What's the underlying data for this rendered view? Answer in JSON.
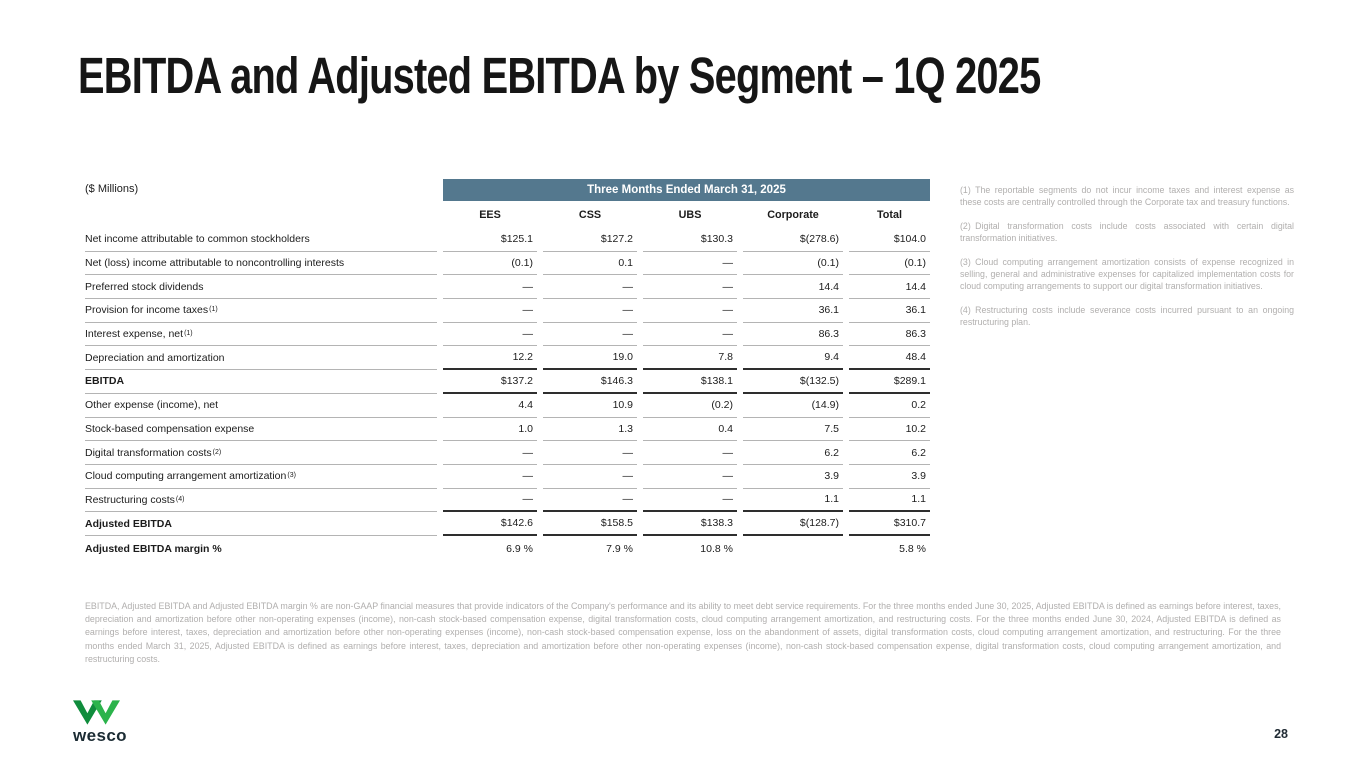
{
  "slide": {
    "title": "EBITDA and Adjusted EBITDA by Segment – 1Q 2025",
    "page_number": "28"
  },
  "table": {
    "units_label": "($ Millions)",
    "period_header": "Three Months Ended March 31, 2025",
    "columns": [
      "EES",
      "CSS",
      "UBS",
      "Corporate",
      "Total"
    ],
    "rows": [
      {
        "label": "Net income attributable to common stockholders",
        "sup": "",
        "values": [
          "$125.1",
          "$127.2",
          "$130.3",
          "$(278.6)",
          "$104.0"
        ],
        "bold": false,
        "border": "light"
      },
      {
        "label": "Net (loss) income attributable to noncontrolling interests",
        "sup": "",
        "values": [
          "(0.1)",
          "0.1",
          "—",
          "(0.1)",
          "(0.1)"
        ],
        "bold": false,
        "border": "light"
      },
      {
        "label": "Preferred stock dividends",
        "sup": "",
        "values": [
          "—",
          "—",
          "—",
          "14.4",
          "14.4"
        ],
        "bold": false,
        "border": "light"
      },
      {
        "label": "Provision for income taxes",
        "sup": "(1)",
        "values": [
          "—",
          "—",
          "—",
          "36.1",
          "36.1"
        ],
        "bold": false,
        "border": "light"
      },
      {
        "label": "Interest expense, net",
        "sup": "(1)",
        "values": [
          "—",
          "—",
          "—",
          "86.3",
          "86.3"
        ],
        "bold": false,
        "border": "light"
      },
      {
        "label": "Depreciation and amortization",
        "sup": "",
        "values": [
          "12.2",
          "19.0",
          "7.8",
          "9.4",
          "48.4"
        ],
        "bold": false,
        "border": "dark"
      },
      {
        "label": "EBITDA",
        "sup": "",
        "values": [
          "$137.2",
          "$146.3",
          "$138.1",
          "$(132.5)",
          "$289.1"
        ],
        "bold": true,
        "border": "dark"
      },
      {
        "label": "Other expense (income), net",
        "sup": "",
        "values": [
          "4.4",
          "10.9",
          "(0.2)",
          "(14.9)",
          "0.2"
        ],
        "bold": false,
        "border": "light"
      },
      {
        "label": "Stock-based compensation expense",
        "sup": "",
        "values": [
          "1.0",
          "1.3",
          "0.4",
          "7.5",
          "10.2"
        ],
        "bold": false,
        "border": "light"
      },
      {
        "label": "Digital transformation costs",
        "sup": "(2)",
        "values": [
          "—",
          "—",
          "—",
          "6.2",
          "6.2"
        ],
        "bold": false,
        "border": "light"
      },
      {
        "label": "Cloud computing arrangement amortization",
        "sup": "(3)",
        "values": [
          "—",
          "—",
          "—",
          "3.9",
          "3.9"
        ],
        "bold": false,
        "border": "light"
      },
      {
        "label": "Restructuring costs",
        "sup": "(4)",
        "values": [
          "—",
          "—",
          "—",
          "1.1",
          "1.1"
        ],
        "bold": false,
        "border": "dark"
      },
      {
        "label": "Adjusted EBITDA",
        "sup": "",
        "values": [
          "$142.6",
          "$158.5",
          "$138.3",
          "$(128.7)",
          "$310.7"
        ],
        "bold": true,
        "border": "dark"
      },
      {
        "label": "Adjusted EBITDA margin %",
        "sup": "",
        "values": [
          "6.9 %",
          "7.9 %",
          "10.8 %",
          "",
          "5.8 %"
        ],
        "bold": true,
        "border": "none"
      }
    ]
  },
  "footnotes": {
    "items": [
      {
        "marker": "(1)",
        "text": "The reportable segments do not incur income taxes and interest expense as these costs are centrally controlled through the Corporate tax and treasury functions."
      },
      {
        "marker": "(2)",
        "text": "Digital transformation costs include costs associated with certain digital transformation initiatives."
      },
      {
        "marker": "(3)",
        "text": "Cloud computing arrangement amortization consists of expense recognized in selling, general and administrative expenses for capitalized implementation costs for cloud computing arrangements to support our digital transformation initiatives."
      },
      {
        "marker": "(4)",
        "text": "Restructuring costs include severance costs incurred pursuant to an ongoing restructuring plan."
      }
    ]
  },
  "disclaimer": "EBITDA, Adjusted EBITDA and Adjusted EBITDA margin % are non-GAAP financial measures that provide indicators of the Company's performance and its ability to meet debt service requirements. For the three months ended June 30, 2025, Adjusted EBITDA is defined as earnings before interest, taxes, depreciation and amortization before other non-operating expenses (income), non-cash stock-based compensation expense, digital transformation costs, cloud computing arrangement amortization, and restructuring costs. For the three months ended June 30, 2024, Adjusted EBITDA is defined as earnings before interest, taxes, depreciation and amortization before other non-operating expenses (income), non-cash stock-based compensation expense, loss on the abandonment of assets, digital transformation costs, cloud computing arrangement amortization, and restructuring. For the three months ended March 31, 2025, Adjusted EBITDA is defined as earnings before interest, taxes, depreciation and amortization before other non-operating expenses (income), non-cash stock-based compensation expense, digital transformation costs, cloud computing arrangement amortization, and restructuring costs.",
  "logo": {
    "brand": "wesco"
  },
  "colors": {
    "header_bar": "#54788e",
    "logo_green_dark": "#0f8c3c",
    "logo_green_light": "#2bb34b",
    "muted_gray": "#b1afae",
    "brand_navy": "#1b2b33"
  }
}
